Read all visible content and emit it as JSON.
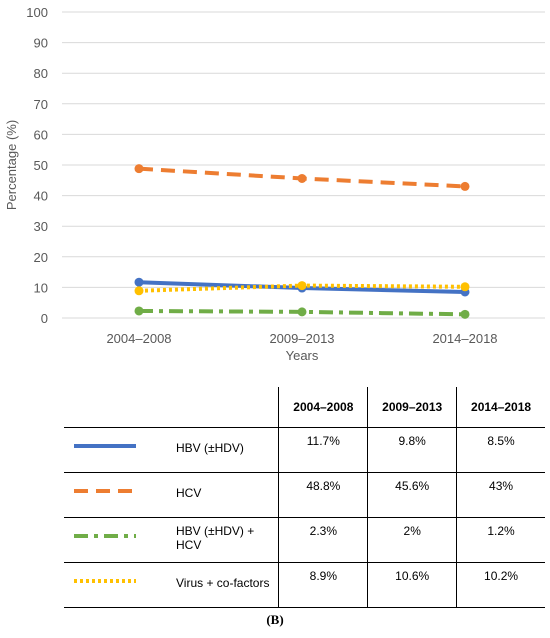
{
  "chart_data": {
    "type": "line",
    "categories": [
      "2004–2008",
      "2009–2013",
      "2014–2018"
    ],
    "ylabel": "Percentage (%)",
    "xlabel": "Years",
    "ylim": [
      0,
      100
    ],
    "yticks": [
      "0",
      "10",
      "20",
      "30",
      "40",
      "50",
      "60",
      "70",
      "80",
      "90",
      "100"
    ],
    "grid": true,
    "series": [
      {
        "name": "HBV (±HDV)",
        "values": [
          11.7,
          9.8,
          8.5
        ],
        "color": "#4472C4",
        "style": "solid"
      },
      {
        "name": "HCV",
        "values": [
          48.8,
          45.6,
          43
        ],
        "color": "#ED7D31",
        "style": "dashed"
      },
      {
        "name": "HBV (±HDV) + HCV",
        "values": [
          2.3,
          2,
          1.2
        ],
        "color": "#70AD47",
        "style": "dashdot"
      },
      {
        "name": "Virus + co-factors",
        "values": [
          8.9,
          10.6,
          10.2
        ],
        "color": "#FFC000",
        "style": "dotted"
      }
    ]
  },
  "table": {
    "headers": [
      "",
      "2004–2008",
      "2009–2013",
      "2014–2018"
    ],
    "rows": [
      {
        "label": "HBV (±HDV)",
        "values": [
          "11.7%",
          "9.8%",
          "8.5%"
        ]
      },
      {
        "label": "HCV",
        "values": [
          "48.8%",
          "45.6%",
          "43%"
        ]
      },
      {
        "label": "HBV (±HDV) + HCV",
        "values": [
          "2.3%",
          "2%",
          "1.2%"
        ]
      },
      {
        "label": "Virus + co-factors",
        "values": [
          "8.9%",
          "10.6%",
          "10.2%"
        ]
      }
    ]
  },
  "caption": "(B)"
}
